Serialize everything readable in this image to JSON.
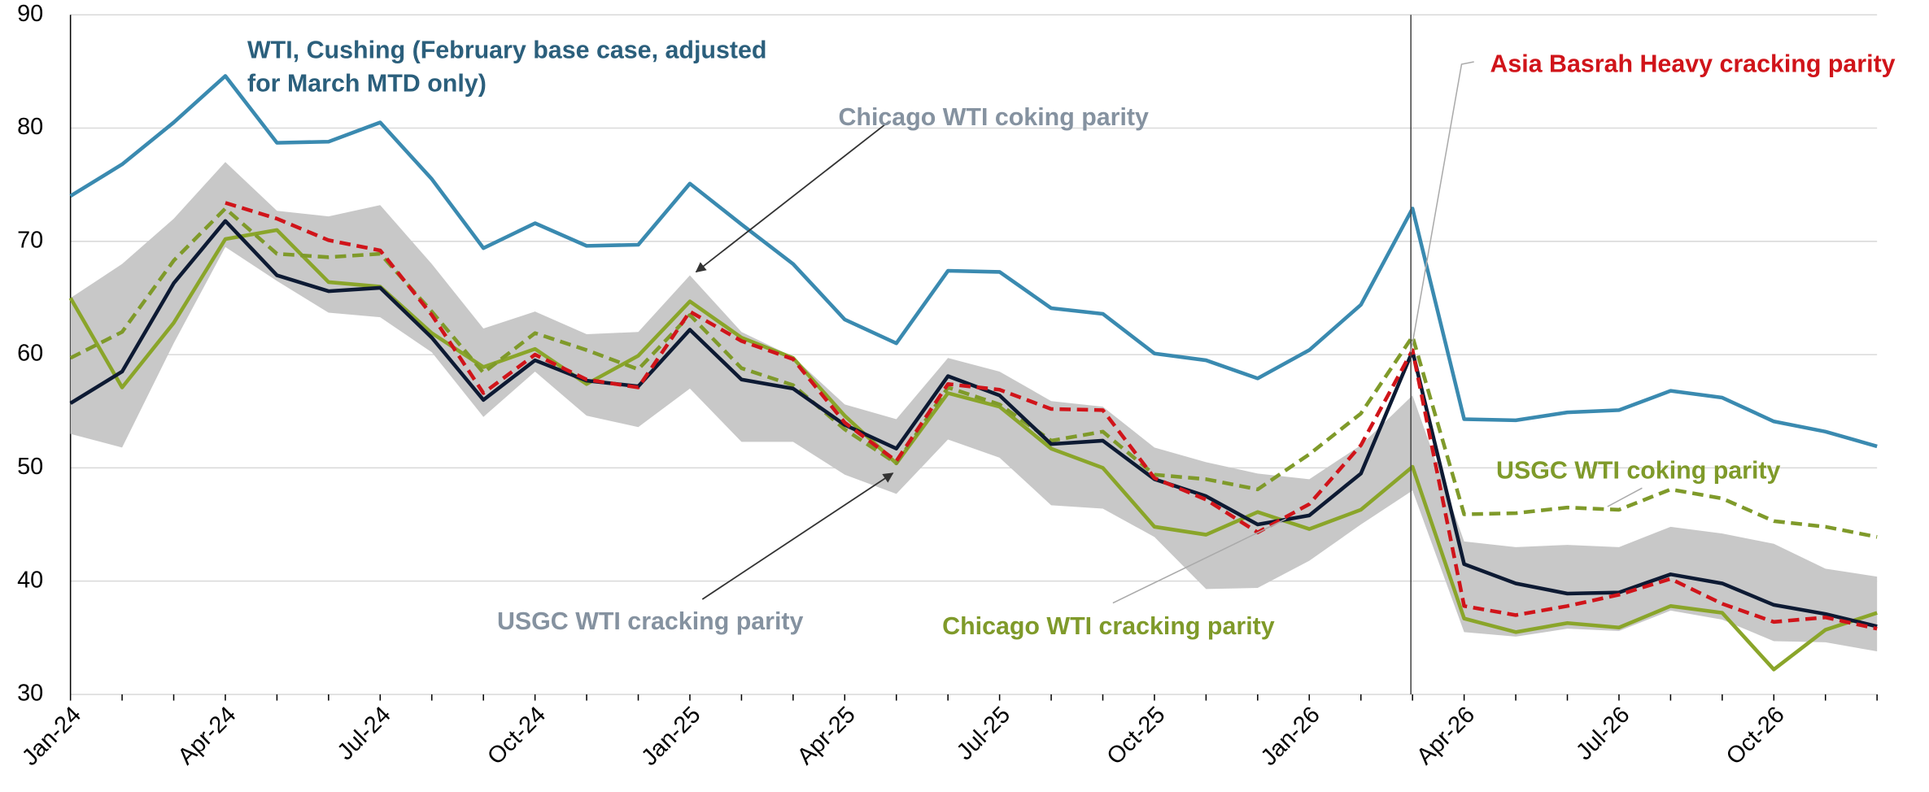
{
  "chart_data": {
    "type": "line",
    "categories": [
      "Jan-24",
      null,
      null,
      "Apr-24",
      null,
      null,
      "Jul-24",
      null,
      null,
      "Oct-24",
      null,
      null,
      "Jan-25",
      null,
      null,
      "Apr-25",
      null,
      null,
      "Jul-25",
      null,
      null,
      "Oct-25",
      null,
      null,
      "Jan-26",
      null,
      null,
      "Apr-26",
      null,
      null,
      "Jul-26",
      null,
      null,
      "Oct-26",
      null,
      null
    ],
    "ylim": [
      30,
      90
    ],
    "yticks": [
      30,
      40,
      50,
      60,
      70,
      80,
      90
    ],
    "grid": true,
    "band": {
      "name": "Chicago WTI coking parity",
      "color": "#c8c8c8",
      "high": [
        65,
        68,
        72,
        77,
        72.7,
        72.2,
        73.2,
        68,
        62.3,
        63.8,
        61.8,
        62,
        67,
        62,
        59.8,
        55.6,
        54.3,
        59.7,
        58.5,
        55.9,
        55.4,
        51.8,
        50.5,
        49.5,
        49,
        52,
        56.4,
        43.5,
        43,
        43.2,
        43,
        44.8,
        44.2,
        43.3,
        41.1,
        40.4
      ],
      "low": [
        53,
        51.8,
        61,
        69.5,
        66.5,
        63.7,
        63.3,
        60.2,
        54.5,
        58.5,
        54.6,
        53.6,
        57,
        52.3,
        52.3,
        49.4,
        47.7,
        52.5,
        50.9,
        46.7,
        46.4,
        43.9,
        39.3,
        39.4,
        41.8,
        45,
        48,
        35.5,
        35.1,
        35.8,
        35.6,
        37.4,
        36.6,
        34.7,
        34.6,
        33.8
      ]
    },
    "series": [
      {
        "name": "WTI, Cushing (February base case, adjusted for March MTD only)",
        "color": "#3a8ab0",
        "dashed": false,
        "values": [
          74,
          76.8,
          80.5,
          84.6,
          78.7,
          78.8,
          80.5,
          75.5,
          69.4,
          71.6,
          69.6,
          69.7,
          75.1,
          71.5,
          68,
          63.1,
          61,
          67.4,
          67.3,
          64.1,
          63.6,
          60.1,
          59.5,
          57.9,
          60.4,
          64.4,
          72.9,
          54.3,
          54.2,
          54.9,
          55.1,
          56.8,
          56.2,
          54.1,
          53.2,
          51.9
        ]
      },
      {
        "name": "USGC WTI cracking parity",
        "color": "#0d1a33",
        "dashed": false,
        "values": [
          55.7,
          58.5,
          66.3,
          71.8,
          67,
          65.6,
          65.9,
          61.5,
          56,
          59.5,
          57.7,
          57.2,
          62.2,
          57.8,
          57,
          53.8,
          51.7,
          58.1,
          56.4,
          52.1,
          52.4,
          49,
          47.5,
          45,
          45.8,
          49.5,
          60.3,
          41.5,
          39.8,
          38.9,
          39,
          40.6,
          39.8,
          37.9,
          37.1,
          36
        ]
      },
      {
        "name": "USGC WTI coking parity",
        "color": "#7f9a2a",
        "dashed": true,
        "values": [
          59.7,
          62,
          68.3,
          72.9,
          68.9,
          68.6,
          68.9,
          63.8,
          58.4,
          61.9,
          60.4,
          58.7,
          63.5,
          58.8,
          57.3,
          53.4,
          50.4,
          57.1,
          55.6,
          52.4,
          53.2,
          49.4,
          49,
          48.1,
          51.2,
          54.8,
          61.6,
          45.9,
          46,
          46.5,
          46.3,
          48.1,
          47.3,
          45.3,
          44.8,
          43.9
        ]
      },
      {
        "name": "Chicago WTI cracking parity",
        "color": "#8aa52a",
        "dashed": false,
        "values": [
          65,
          57.1,
          62.8,
          70.2,
          71,
          66.4,
          66,
          61.9,
          58.9,
          60.5,
          57.4,
          59.9,
          64.7,
          61.5,
          59.7,
          54.6,
          50.4,
          56.6,
          55.4,
          51.7,
          50,
          44.8,
          44.1,
          46.1,
          44.6,
          46.3,
          50.1,
          36.7,
          35.5,
          36.3,
          35.9,
          37.8,
          37.2,
          32.2,
          35.7,
          37.2
        ]
      },
      {
        "name": "Asia Basrah Heavy cracking parity",
        "color": "#d0141a",
        "dashed": true,
        "values": [
          null,
          null,
          null,
          73.4,
          72,
          70.1,
          69.2,
          63.5,
          56.6,
          60,
          57.8,
          57.1,
          63.8,
          61.2,
          59.6,
          54,
          50.6,
          57.4,
          56.9,
          55.2,
          55.1,
          49.1,
          47.2,
          44.3,
          46.8,
          52,
          60.4,
          37.8,
          37,
          37.8,
          38.8,
          40.2,
          38,
          36.4,
          36.8,
          35.8
        ]
      }
    ]
  }
}
